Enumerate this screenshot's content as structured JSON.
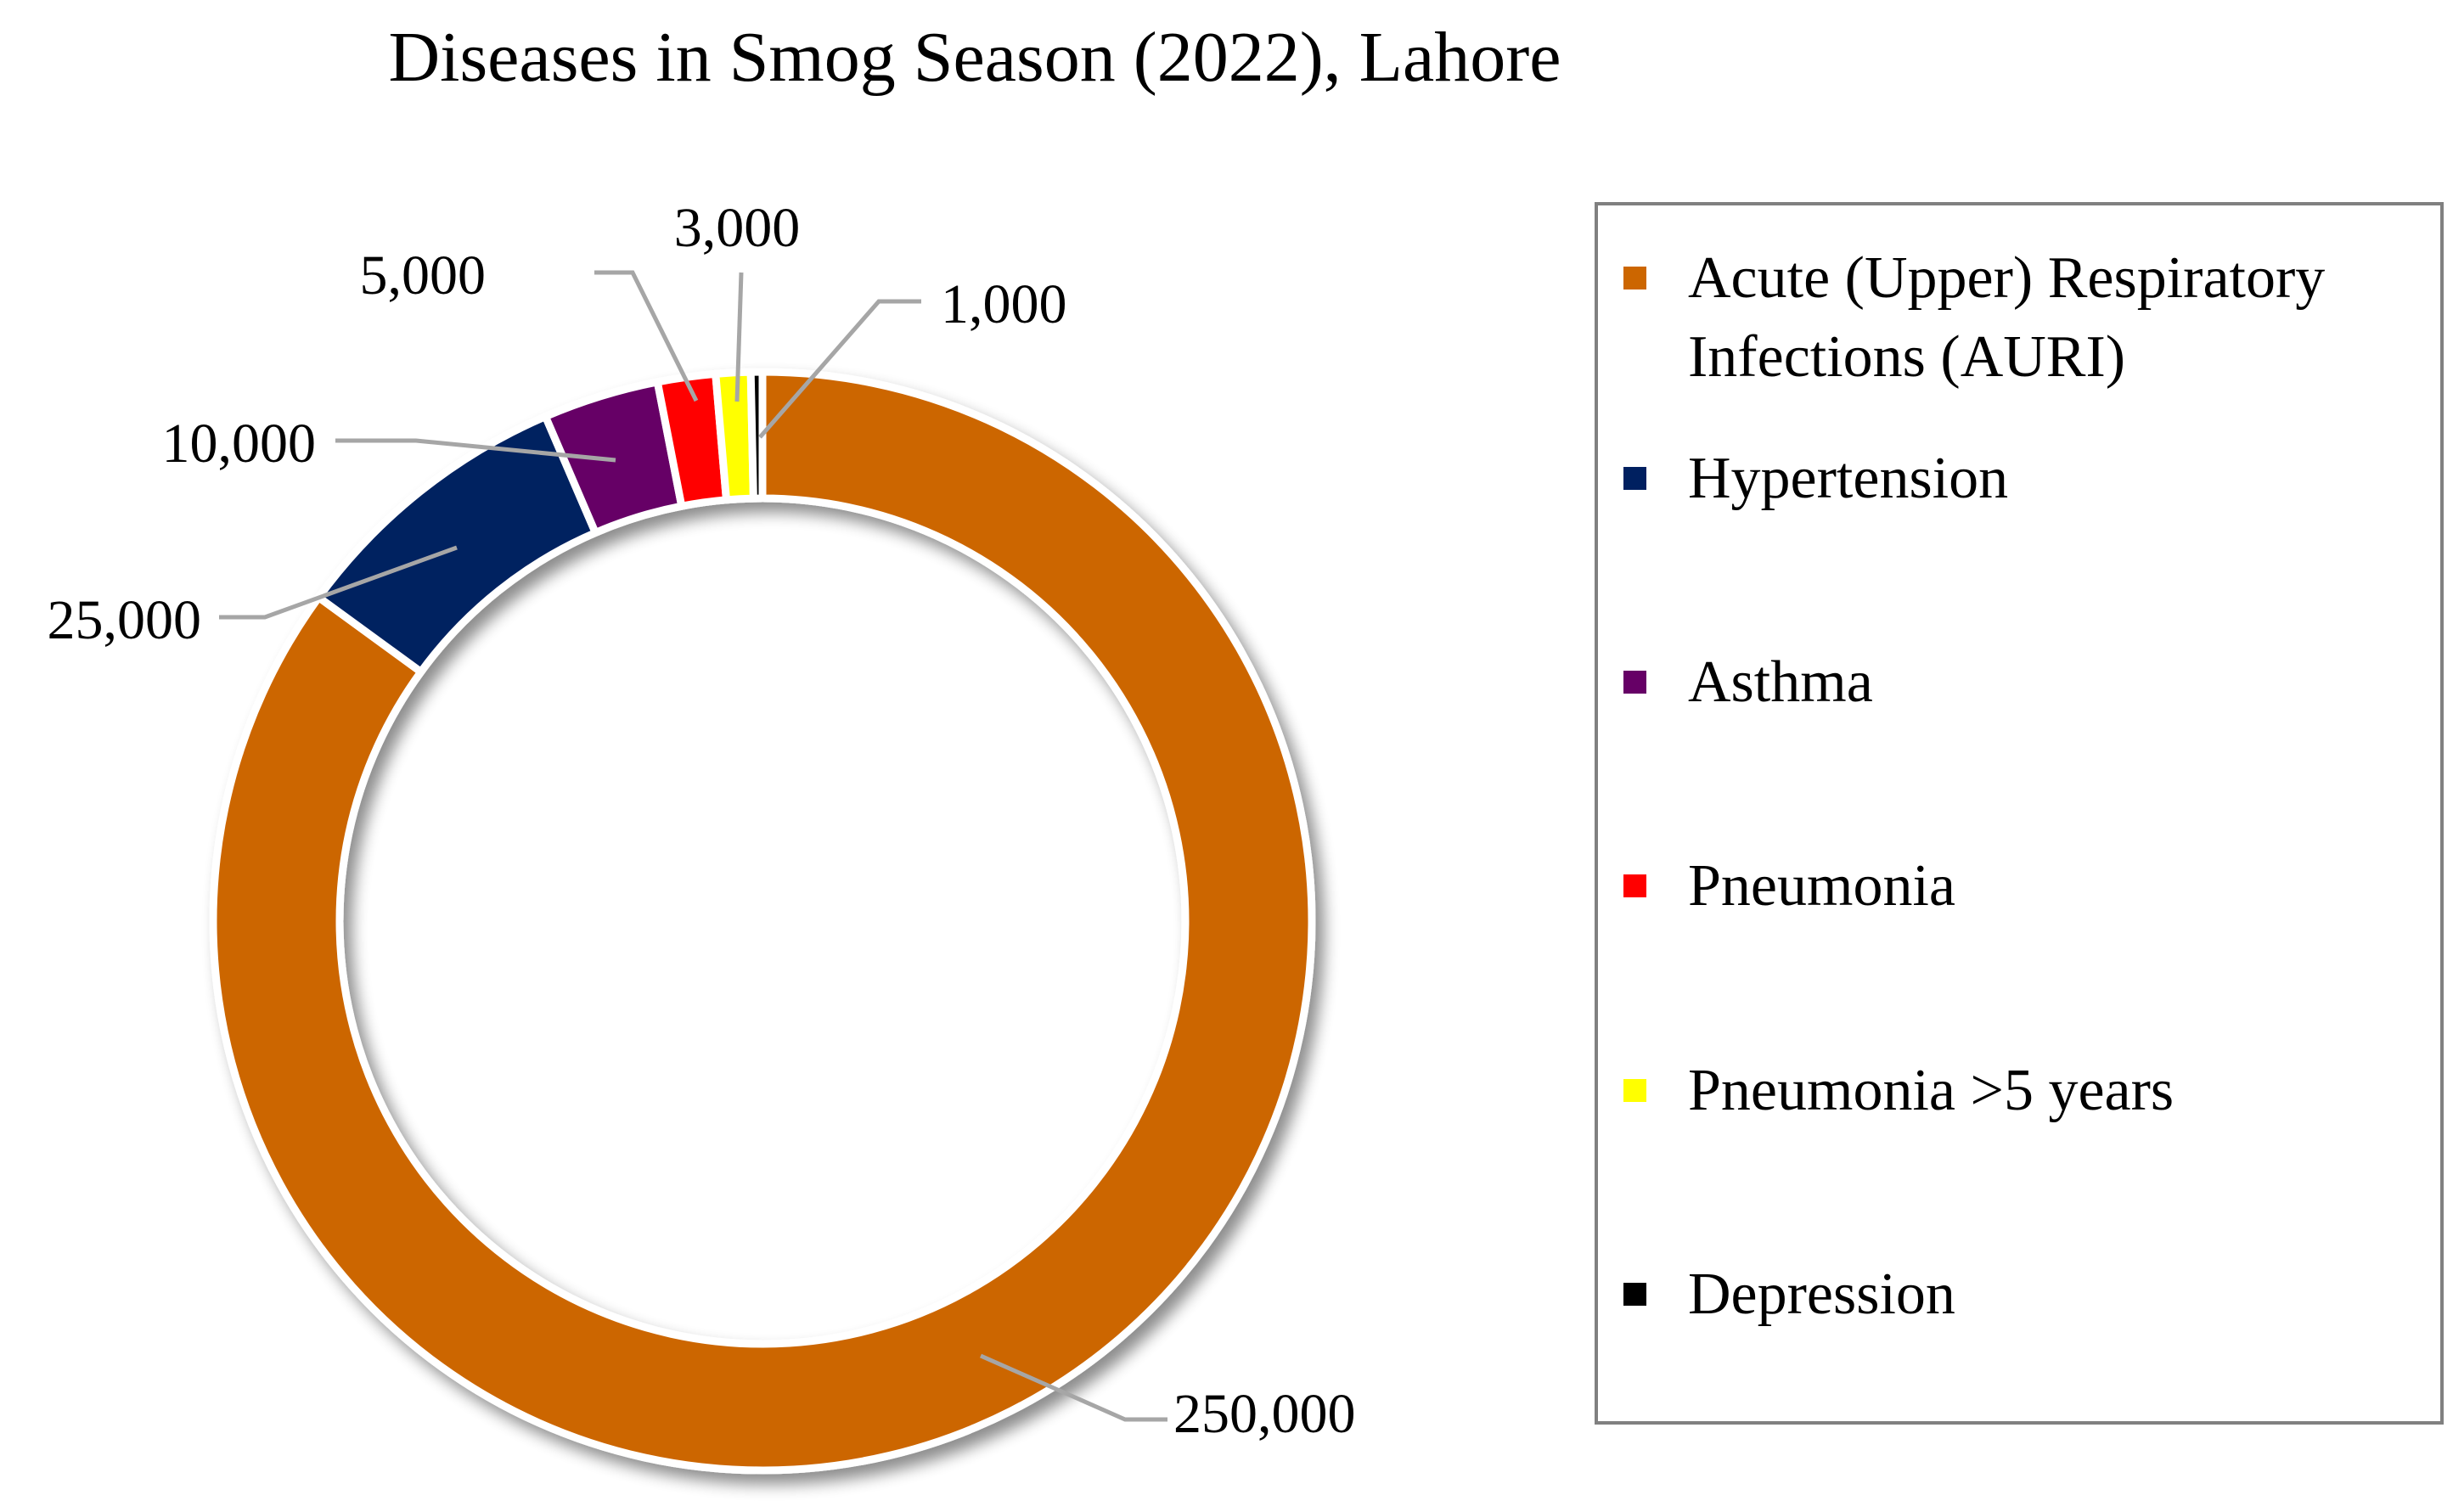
{
  "chart_data": {
    "type": "pie",
    "variant": "doughnut",
    "title": "Diseases in Smog Season (2022), Lahore",
    "slices": [
      {
        "name": "Acute (Upper) Respiratory Infections (AURI)",
        "legend_lines": [
          "Acute (Upper) Respiratory",
          "Infections (AURI)"
        ],
        "value": 250000,
        "label": "250,000",
        "color": "#CC6600"
      },
      {
        "name": "Hypertension",
        "legend_lines": [
          "Hypertension"
        ],
        "value": 25000,
        "label": "25,000",
        "color": "#002060"
      },
      {
        "name": "Asthma",
        "legend_lines": [
          "Asthma"
        ],
        "value": 10000,
        "label": "10,000",
        "color": "#660066"
      },
      {
        "name": "Pneumonia",
        "legend_lines": [
          "Pneumonia"
        ],
        "value": 5000,
        "label": "5,000",
        "color": "#FF0000"
      },
      {
        "name": "Pneumonia >5 years",
        "legend_lines": [
          "Pneumonia >5 years"
        ],
        "value": 3000,
        "label": "3,000",
        "color": "#FFFF00"
      },
      {
        "name": "Depression",
        "legend_lines": [
          "Depression"
        ],
        "value": 1000,
        "label": "1,000",
        "color": "#000000"
      }
    ],
    "legend_position": "right",
    "leader_line_color": "#A6A6A6",
    "separator_color": "#FFFFFF"
  }
}
